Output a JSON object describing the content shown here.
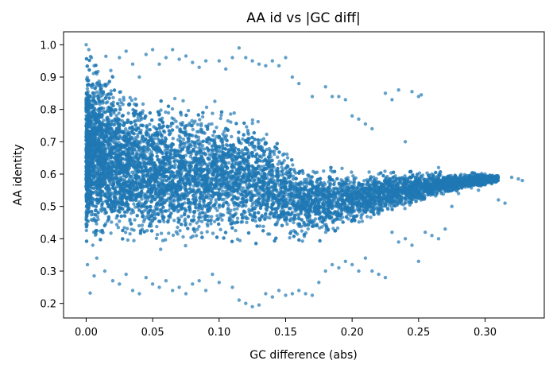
{
  "chart_data": {
    "type": "scatter",
    "title": "AA id vs |GC diff|",
    "xlabel": "GC difference (abs)",
    "ylabel": "AA identity",
    "xlim": [
      -0.017,
      0.3445
    ],
    "ylim": [
      0.155,
      1.04
    ],
    "xticks": [
      0.0,
      0.05,
      0.1,
      0.15,
      0.2,
      0.25,
      0.3
    ],
    "xtick_labels": [
      "0.00",
      "0.05",
      "0.10",
      "0.15",
      "0.20",
      "0.25",
      "0.30"
    ],
    "yticks": [
      0.2,
      0.3,
      0.4,
      0.5,
      0.6,
      0.7,
      0.8,
      0.9,
      1.0
    ],
    "ytick_labels": [
      "0.2",
      "0.3",
      "0.4",
      "0.5",
      "0.6",
      "0.7",
      "0.8",
      "0.9",
      "1.0"
    ],
    "grid": false,
    "legend": null,
    "marker_color": "#1f77b4",
    "marker_alpha": 0.7,
    "series": [
      {
        "points": [
          [
            0.0,
            1.0
          ],
          [
            0.002,
            0.985
          ],
          [
            0.004,
            0.96
          ],
          [
            0.006,
            0.935
          ],
          [
            0.008,
            0.91
          ],
          [
            0.01,
            0.88
          ],
          [
            0.012,
            0.85
          ],
          [
            0.015,
            0.82
          ],
          [
            0.005,
            0.79
          ],
          [
            0.01,
            0.76
          ],
          [
            0.003,
            0.73
          ],
          [
            0.013,
            0.7
          ],
          [
            0.007,
            0.66
          ],
          [
            0.011,
            0.62
          ],
          [
            0.004,
            0.58
          ],
          [
            0.016,
            0.54
          ],
          [
            0.002,
            0.5
          ],
          [
            0.009,
            0.46
          ],
          [
            0.012,
            0.42
          ],
          [
            0.005,
            0.38
          ],
          [
            0.008,
            0.34
          ],
          [
            0.001,
            0.32
          ],
          [
            0.014,
            0.3
          ],
          [
            0.006,
            0.285
          ],
          [
            0.003,
            0.232
          ],
          [
            0.02,
            0.9
          ],
          [
            0.025,
            0.96
          ],
          [
            0.03,
            0.98
          ],
          [
            0.035,
            0.94
          ],
          [
            0.04,
            0.9
          ],
          [
            0.045,
            0.97
          ],
          [
            0.05,
            0.985
          ],
          [
            0.055,
            0.94
          ],
          [
            0.06,
            0.96
          ],
          [
            0.065,
            0.985
          ],
          [
            0.07,
            0.955
          ],
          [
            0.075,
            0.965
          ],
          [
            0.08,
            0.945
          ],
          [
            0.085,
            0.93
          ],
          [
            0.09,
            0.95
          ],
          [
            0.1,
            0.95
          ],
          [
            0.105,
            0.925
          ],
          [
            0.11,
            0.96
          ],
          [
            0.115,
            0.99
          ],
          [
            0.12,
            0.96
          ],
          [
            0.125,
            0.95
          ],
          [
            0.13,
            0.94
          ],
          [
            0.135,
            0.935
          ],
          [
            0.14,
            0.95
          ],
          [
            0.145,
            0.935
          ],
          [
            0.15,
            0.96
          ],
          [
            0.155,
            0.9
          ],
          [
            0.16,
            0.88
          ],
          [
            0.17,
            0.84
          ],
          [
            0.18,
            0.87
          ],
          [
            0.185,
            0.84
          ],
          [
            0.19,
            0.84
          ],
          [
            0.195,
            0.83
          ],
          [
            0.2,
            0.78
          ],
          [
            0.205,
            0.77
          ],
          [
            0.21,
            0.755
          ],
          [
            0.215,
            0.74
          ],
          [
            0.22,
            0.6
          ],
          [
            0.225,
            0.85
          ],
          [
            0.23,
            0.83
          ],
          [
            0.235,
            0.86
          ],
          [
            0.24,
            0.7
          ],
          [
            0.245,
            0.855
          ],
          [
            0.25,
            0.84
          ],
          [
            0.252,
            0.845
          ],
          [
            0.26,
            0.6
          ],
          [
            0.265,
            0.62
          ],
          [
            0.27,
            0.57
          ],
          [
            0.275,
            0.5
          ],
          [
            0.28,
            0.54
          ],
          [
            0.285,
            0.56
          ],
          [
            0.29,
            0.58
          ],
          [
            0.295,
            0.55
          ],
          [
            0.3,
            0.6
          ],
          [
            0.305,
            0.57
          ],
          [
            0.31,
            0.52
          ],
          [
            0.315,
            0.51
          ],
          [
            0.32,
            0.59
          ],
          [
            0.325,
            0.585
          ],
          [
            0.328,
            0.58
          ],
          [
            0.02,
            0.27
          ],
          [
            0.025,
            0.26
          ],
          [
            0.03,
            0.29
          ],
          [
            0.035,
            0.24
          ],
          [
            0.04,
            0.23
          ],
          [
            0.045,
            0.28
          ],
          [
            0.05,
            0.26
          ],
          [
            0.055,
            0.25
          ],
          [
            0.06,
            0.27
          ],
          [
            0.065,
            0.24
          ],
          [
            0.07,
            0.25
          ],
          [
            0.075,
            0.23
          ],
          [
            0.08,
            0.26
          ],
          [
            0.085,
            0.27
          ],
          [
            0.09,
            0.24
          ],
          [
            0.095,
            0.29
          ],
          [
            0.1,
            0.265
          ],
          [
            0.11,
            0.25
          ],
          [
            0.115,
            0.21
          ],
          [
            0.12,
            0.2
          ],
          [
            0.125,
            0.19
          ],
          [
            0.13,
            0.195
          ],
          [
            0.135,
            0.23
          ],
          [
            0.14,
            0.22
          ],
          [
            0.145,
            0.24
          ],
          [
            0.15,
            0.225
          ],
          [
            0.155,
            0.23
          ],
          [
            0.16,
            0.24
          ],
          [
            0.165,
            0.23
          ],
          [
            0.17,
            0.225
          ],
          [
            0.175,
            0.265
          ],
          [
            0.18,
            0.3
          ],
          [
            0.185,
            0.32
          ],
          [
            0.19,
            0.31
          ],
          [
            0.195,
            0.33
          ],
          [
            0.2,
            0.32
          ],
          [
            0.205,
            0.3
          ],
          [
            0.21,
            0.34
          ],
          [
            0.215,
            0.3
          ],
          [
            0.22,
            0.29
          ],
          [
            0.225,
            0.28
          ],
          [
            0.23,
            0.42
          ],
          [
            0.235,
            0.39
          ],
          [
            0.24,
            0.4
          ],
          [
            0.245,
            0.38
          ],
          [
            0.25,
            0.33
          ],
          [
            0.255,
            0.42
          ],
          [
            0.26,
            0.41
          ],
          [
            0.265,
            0.4
          ],
          [
            0.27,
            0.43
          ]
        ]
      }
    ],
    "cloud_profile": [
      {
        "x": 0.0,
        "low": 0.34,
        "high": 1.0
      },
      {
        "x": 0.01,
        "low": 0.33,
        "high": 0.99
      },
      {
        "x": 0.02,
        "low": 0.33,
        "high": 0.96
      },
      {
        "x": 0.03,
        "low": 0.34,
        "high": 0.9
      },
      {
        "x": 0.05,
        "low": 0.35,
        "high": 0.86
      },
      {
        "x": 0.07,
        "low": 0.35,
        "high": 0.86
      },
      {
        "x": 0.09,
        "low": 0.36,
        "high": 0.84
      },
      {
        "x": 0.11,
        "low": 0.36,
        "high": 0.82
      },
      {
        "x": 0.13,
        "low": 0.37,
        "high": 0.8
      },
      {
        "x": 0.15,
        "low": 0.37,
        "high": 0.7
      },
      {
        "x": 0.17,
        "low": 0.38,
        "high": 0.65
      },
      {
        "x": 0.19,
        "low": 0.4,
        "high": 0.63
      },
      {
        "x": 0.21,
        "low": 0.44,
        "high": 0.63
      },
      {
        "x": 0.23,
        "low": 0.47,
        "high": 0.62
      },
      {
        "x": 0.25,
        "low": 0.5,
        "high": 0.62
      },
      {
        "x": 0.27,
        "low": 0.53,
        "high": 0.61
      },
      {
        "x": 0.29,
        "low": 0.55,
        "high": 0.61
      },
      {
        "x": 0.31,
        "low": 0.57,
        "high": 0.6
      }
    ]
  }
}
